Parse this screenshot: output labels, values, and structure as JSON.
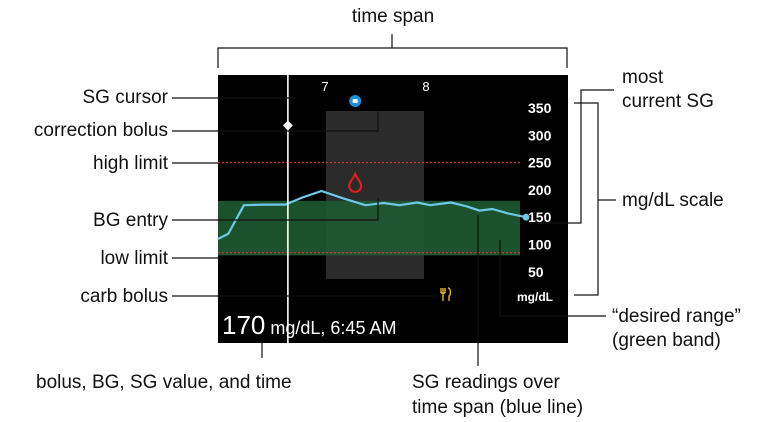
{
  "labels": {
    "time_span": "time span",
    "sg_cursor": "SG cursor",
    "correction_bolus": "correction bolus",
    "high_limit": "high limit",
    "bg_entry": "BG entry",
    "low_limit": "low limit",
    "carb_bolus": "carb bolus",
    "most_current_sg": [
      "most",
      "current SG"
    ],
    "mgdl_scale": "mg/dL scale",
    "desired_range": [
      "“desired range”",
      "(green band)"
    ],
    "bottom_value": "bolus, BG, SG value, and time",
    "sg_readings": [
      "SG readings over",
      "time span (blue line)"
    ]
  },
  "screen": {
    "hours": [
      "7",
      "8"
    ],
    "y_ticks": [
      350,
      300,
      250,
      200,
      150,
      100,
      50
    ],
    "unit": "mg/dL",
    "reading_value": "170",
    "reading_rest": " mg/dL, 6:45 AM",
    "colors": {
      "background": "#000000",
      "sg_line": "#6ec9e6",
      "desired_range": "#1e5a32",
      "limit_line": "#c0392b",
      "bg_drop": "#e02020",
      "bolus": "#1e8fd8",
      "carb": "#e0b33a"
    },
    "sg_readings": [
      {
        "minute": 0,
        "sg": 110
      },
      {
        "minute": 4,
        "sg": 120
      },
      {
        "minute": 10,
        "sg": 172
      },
      {
        "minute": 18,
        "sg": 173
      },
      {
        "minute": 26,
        "sg": 173
      },
      {
        "minute": 32,
        "sg": 185
      },
      {
        "minute": 40,
        "sg": 198
      },
      {
        "minute": 48,
        "sg": 185
      },
      {
        "minute": 57,
        "sg": 172
      },
      {
        "minute": 64,
        "sg": 176
      },
      {
        "minute": 70,
        "sg": 172
      },
      {
        "minute": 77,
        "sg": 177
      },
      {
        "minute": 82,
        "sg": 172
      },
      {
        "minute": 90,
        "sg": 177
      },
      {
        "minute": 96,
        "sg": 170
      },
      {
        "minute": 101,
        "sg": 162
      },
      {
        "minute": 106,
        "sg": 165
      },
      {
        "minute": 112,
        "sg": 157
      },
      {
        "minute": 119,
        "sg": 150
      }
    ],
    "high_limit_sg": 250,
    "low_limit_sg": 85,
    "desired_range_sg": [
      80,
      180
    ],
    "cursor_minute": 27,
    "correction_bolus_minute": 53,
    "bg_entry": {
      "minute": 53,
      "sg": 200
    }
  }
}
